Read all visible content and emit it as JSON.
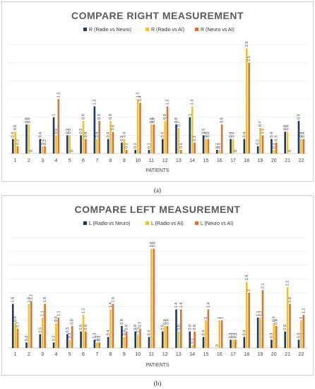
{
  "chart_data": [
    {
      "type": "bar",
      "title": "COMPARE RIGHT MEASUREMENT",
      "xlabel": "PATIENTS",
      "ylabel": "",
      "categories": [
        "1",
        "2",
        "3",
        "4",
        "5",
        "6",
        "7",
        "8",
        "9",
        "10",
        "11",
        "12",
        "13",
        "14",
        "15",
        "16",
        "17",
        "18",
        "19",
        "20",
        "21",
        "22"
      ],
      "ylim": [
        0,
        3.1
      ],
      "grid": true,
      "legend_position": "top",
      "series": [
        {
          "name": "R (Radio vs Neuro)",
          "color": "#1f3a5f",
          "values": [
            0.4,
            0.8,
            0.4,
            1.0,
            0.5,
            0.5,
            1.3,
            0.4,
            0.3,
            0.1,
            0.1,
            0.4,
            0.8,
            1.0,
            0.5,
            0.1,
            0.4,
            0.4,
            0.2,
            0.4,
            0.6,
            0.9
          ]
        },
        {
          "name": "R (Radio vs AI)",
          "color": "#f2c12e",
          "values": [
            0.6,
            0.8,
            0.2,
            0.5,
            0.5,
            0.9,
            0.4,
            0.9,
            0.4,
            1.5,
            0.8,
            0.9,
            0.7,
            1.3,
            0.4,
            0.1,
            0.4,
            2.9,
            0.7,
            0.1,
            0.6,
            0.4
          ]
        },
        {
          "name": "R (Neuro vs AI)",
          "color": "#e0712f",
          "values": [
            0.2,
            0,
            0.2,
            1.5,
            0,
            0.4,
            0.9,
            0.6,
            0.1,
            1.4,
            0.8,
            1.3,
            0.1,
            0.3,
            0.4,
            0.8,
            0,
            2.5,
            0.5,
            0.3,
            0,
            0.4
          ]
        }
      ]
    },
    {
      "type": "bar",
      "title": "COMPARE LEFT MEASUREMENT",
      "xlabel": "PATIENTS",
      "ylabel": "",
      "categories": [
        "1",
        "2",
        "3",
        "4",
        "5",
        "6",
        "7",
        "8",
        "9",
        "10",
        "11",
        "12",
        "13",
        "14",
        "15",
        "16",
        "17",
        "18",
        "19",
        "20",
        "21",
        "22"
      ],
      "ylim": [
        0,
        4.0
      ],
      "grid": true,
      "legend_position": "top",
      "series": [
        {
          "name": "L (Radio vs Neuro)",
          "color": "#1f3a5f",
          "values": [
            1.6,
            0.2,
            0.5,
            0.2,
            0.5,
            0.6,
            0.3,
            0.4,
            0.8,
            0.6,
            0.4,
            0.6,
            1.4,
            0.6,
            0.4,
            0,
            0.3,
            0.4,
            1.1,
            0.3,
            0.6,
            0.3
          ]
        },
        {
          "name": "L (Radio vs AI)",
          "color": "#f2c12e",
          "values": [
            0.9,
            1.6,
            1.1,
            0.9,
            0.3,
            1.2,
            0.2,
            1.4,
            0.4,
            0.5,
            3.6,
            0.8,
            0.6,
            0.1,
            1.0,
            1.0,
            0.3,
            2.4,
            1.1,
            0.9,
            2.2,
            1.0
          ]
        },
        {
          "name": "L (Neuro vs AI)",
          "color": "#e0712f",
          "values": [
            0.7,
            1.7,
            1.6,
            1.1,
            0.8,
            0.6,
            0.2,
            1.6,
            0.6,
            0.7,
            3.6,
            0.8,
            1.4,
            0.6,
            1.4,
            1.0,
            0.3,
            2.0,
            2.1,
            0.8,
            1.6,
            1.2
          ]
        }
      ]
    }
  ],
  "panels": {
    "top_label": "(a)",
    "bottom_label": "(b)"
  }
}
